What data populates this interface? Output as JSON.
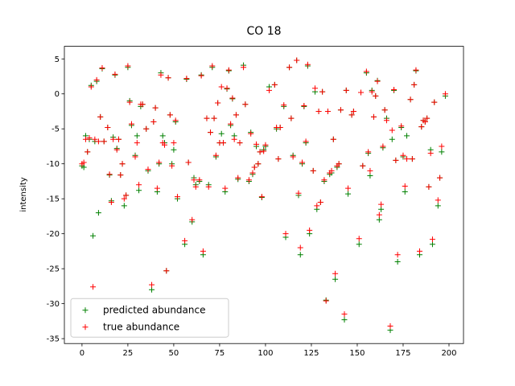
{
  "chart_data": {
    "type": "scatter",
    "title": "CO 18",
    "y_label": "intensity",
    "x": [
      0,
      1,
      2,
      3,
      4,
      5,
      6,
      7,
      8,
      9,
      10,
      11,
      12,
      14,
      15,
      16,
      17,
      18,
      19,
      20,
      21,
      22,
      23,
      24,
      25,
      26,
      27,
      29,
      30,
      31,
      32,
      33,
      35,
      36,
      38,
      39,
      40,
      41,
      42,
      43,
      44,
      45,
      46,
      47,
      48,
      49,
      50,
      51,
      52,
      56,
      57,
      58,
      60,
      61,
      62,
      64,
      65,
      66,
      68,
      69,
      70,
      71,
      72,
      73,
      74,
      75,
      76,
      77,
      78,
      79,
      80,
      81,
      82,
      83,
      84,
      85,
      86,
      88,
      89,
      91,
      92,
      93,
      94,
      95,
      96,
      97,
      98,
      99,
      100,
      102,
      105,
      106,
      107,
      108,
      110,
      111,
      113,
      114,
      115,
      117,
      118,
      119,
      120,
      121,
      122,
      123,
      124,
      126,
      127,
      128,
      129,
      130,
      131,
      132,
      133,
      134,
      135,
      136,
      137,
      138,
      139,
      140,
      141,
      143,
      144,
      145,
      147,
      148,
      151,
      152,
      153,
      155,
      156,
      157,
      158,
      159,
      160,
      161,
      162,
      163,
      164,
      165,
      166,
      168,
      169,
      170,
      171,
      172,
      174,
      175,
      176,
      177,
      179,
      180,
      181,
      182,
      184,
      185,
      186,
      187,
      188,
      189,
      190,
      191,
      192,
      194,
      195,
      196,
      198
    ],
    "series": [
      {
        "name": "predicted abundance",
        "color": "green",
        "values": [
          -10.3,
          -10.5,
          -6.0,
          -8.3,
          -6.5,
          1.2,
          -20.3,
          -6.8,
          1.8,
          -17.0,
          -3.3,
          3.6,
          -6.8,
          -4.8,
          -11.6,
          -15.3,
          -6.2,
          2.7,
          -7.8,
          -6.5,
          -11.6,
          -10.0,
          -16.0,
          -14.5,
          3.8,
          -1.0,
          -4.5,
          -8.8,
          -6.0,
          -13.8,
          -1.8,
          -1.5,
          -5.0,
          -11.0,
          -28.0,
          -4.0,
          -2.0,
          -14.0,
          -10.0,
          3.0,
          -6.0,
          -7.0,
          -25.3,
          2.3,
          -3.0,
          -10.0,
          -8.0,
          -4.0,
          -15.0,
          -21.5,
          2.1,
          -9.8,
          -18.3,
          -12.0,
          -13.0,
          -12.5,
          2.7,
          -23.0,
          -3.5,
          -13.0,
          -5.5,
          3.8,
          -3.5,
          -9.0,
          -1.3,
          -7.0,
          -5.7,
          -7.0,
          -14.0,
          0.7,
          3.3,
          -4.5,
          -0.7,
          -6.0,
          -3.0,
          -12.2,
          -7.0,
          4.1,
          -1.5,
          -12.5,
          -5.5,
          -11.5,
          -10.5,
          -7.5,
          -10.0,
          -8.3,
          -14.8,
          -8.0,
          -7.5,
          1.0,
          1.3,
          -5.0,
          -9.3,
          -4.8,
          -1.8,
          -20.5,
          3.8,
          -3.5,
          -8.8,
          4.8,
          -14.5,
          -23.0,
          -10.0,
          -1.8,
          -7.0,
          4.0,
          -20.0,
          -11.0,
          0.3,
          -16.5,
          -2.5,
          -15.5,
          0.3,
          -12.5,
          -29.5,
          -2.5,
          -11.5,
          -11.3,
          -6.5,
          -26.5,
          -10.5,
          -10.0,
          -2.3,
          -32.3,
          0.5,
          -14.3,
          -3.0,
          -2.5,
          -21.5,
          0.2,
          -10.3,
          3.0,
          -8.5,
          -11.7,
          0.5,
          -3.3,
          -0.3,
          1.9,
          -18.0,
          -16.5,
          -7.7,
          -2.3,
          -3.5,
          -33.8,
          -6.5,
          0.5,
          -9.5,
          -24.0,
          -4.8,
          -9.0,
          -14.0,
          -6.0,
          -0.8,
          -9.3,
          1.3,
          3.3,
          -23.0,
          -4.7,
          -3.8,
          -4.0,
          -3.5,
          -13.3,
          -8.0,
          -21.5,
          -1.2,
          -16.0,
          -12.0,
          -8.3,
          -0.3
        ]
      },
      {
        "name": "true abundance",
        "color": "red",
        "values": [
          -10.0,
          -9.8,
          -6.5,
          -8.3,
          -6.3,
          1.0,
          -27.6,
          -6.5,
          2.0,
          -6.8,
          -3.3,
          3.7,
          -6.8,
          -4.8,
          -11.5,
          -15.5,
          -6.5,
          2.8,
          -8.0,
          -6.5,
          -11.6,
          -10.0,
          -15.0,
          -14.5,
          4.0,
          -1.2,
          -4.3,
          -9.0,
          -7.0,
          -13.0,
          -1.5,
          -1.5,
          -5.0,
          -10.8,
          -27.3,
          -4.0,
          -2.0,
          -13.5,
          -9.8,
          2.7,
          -7.0,
          -7.3,
          -25.3,
          2.3,
          -3.0,
          -10.3,
          -7.0,
          -3.8,
          -14.7,
          -21.0,
          2.2,
          -9.8,
          -18.0,
          -12.3,
          -13.3,
          -12.3,
          2.6,
          -22.5,
          -3.5,
          -13.3,
          -5.5,
          4.0,
          -3.5,
          -8.8,
          -1.3,
          -7.0,
          1.0,
          -7.0,
          -13.5,
          0.8,
          3.4,
          -4.3,
          -0.6,
          -6.5,
          -3.0,
          -12.0,
          -7.0,
          3.8,
          -1.5,
          -12.3,
          -5.7,
          -11.3,
          -10.5,
          -7.2,
          -10.0,
          -8.3,
          -14.7,
          -8.2,
          -7.3,
          0.5,
          1.3,
          -4.8,
          -9.3,
          -4.8,
          -1.6,
          -20.0,
          3.8,
          -3.5,
          -9.0,
          4.8,
          -14.2,
          -22.0,
          -9.8,
          -1.7,
          -6.8,
          4.2,
          -19.5,
          -11.0,
          0.8,
          -16.0,
          -2.5,
          -15.5,
          0.3,
          -12.3,
          -29.6,
          -2.5,
          -11.3,
          -11.0,
          -6.5,
          -25.7,
          -10.3,
          -10.0,
          -2.3,
          -31.5,
          0.5,
          -13.5,
          -3.0,
          -2.5,
          -20.7,
          0.2,
          -10.3,
          3.2,
          -8.3,
          -11.0,
          0.3,
          -3.3,
          -0.3,
          1.8,
          -17.3,
          -15.8,
          -7.5,
          -2.3,
          -3.8,
          -33.2,
          -5.2,
          0.6,
          -9.5,
          -23.0,
          -4.6,
          -8.8,
          -13.2,
          -9.3,
          -0.8,
          -9.3,
          1.3,
          3.4,
          -22.5,
          -4.7,
          -3.8,
          -4.0,
          -3.5,
          -13.3,
          -8.5,
          -20.8,
          -1.2,
          -15.2,
          -12.0,
          -7.5,
          0.0
        ]
      }
    ],
    "xlim": [
      -9.6,
      207.9
    ],
    "ylim": [
      -35.7,
      6.8
    ],
    "xticks": [
      0,
      25,
      50,
      75,
      100,
      125,
      150,
      175,
      200
    ],
    "yticks": [
      -35,
      -30,
      -25,
      -20,
      -15,
      -10,
      -5,
      0,
      5
    ],
    "legend": "lower left",
    "marker": "+"
  }
}
